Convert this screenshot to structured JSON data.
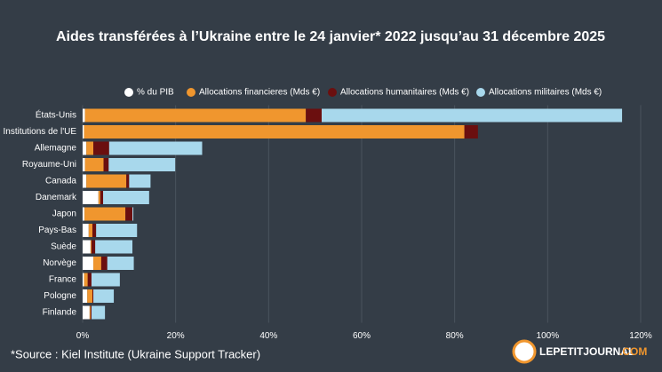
{
  "chart_data": {
    "type": "stacked-barh",
    "title": "Aides transférées à l’Ukraine entre le 24 janvier* 2022 jusqu’au 31 décembre 2025",
    "categories": [
      "États-Unis",
      "Institutions de l'UE",
      "Allemagne",
      "Royaume-Uni",
      "Canada",
      "Danemark",
      "Japon",
      "Pays-Bas",
      "Suède",
      "Norvège",
      "France",
      "Pologne",
      "Finlande"
    ],
    "series": [
      {
        "name": "% du PIB",
        "color": "#ffffff",
        "values": [
          0.5,
          0.3,
          0.8,
          0.5,
          0.8,
          3.4,
          0.4,
          1.3,
          1.7,
          2.3,
          0.3,
          1.0,
          1.5
        ]
      },
      {
        "name": "Allocations financieres (Mds €)",
        "color": "#f0962e",
        "values": [
          47.5,
          81.8,
          1.5,
          4.0,
          8.6,
          0.4,
          8.8,
          0.8,
          0.2,
          1.7,
          0.8,
          1.1,
          0.2
        ]
      },
      {
        "name": "Allocations humanitaires (Mds €)",
        "color": "#6b0f0f",
        "values": [
          3.4,
          2.9,
          3.4,
          1.1,
          0.6,
          0.6,
          1.5,
          0.8,
          0.8,
          1.3,
          0.8,
          0.2,
          0.2
        ]
      },
      {
        "name": "Allocations militaires (Mds €)",
        "color": "#a8d8ec",
        "values": [
          64.6,
          0,
          20.0,
          14.3,
          4.6,
          9.9,
          0.2,
          8.8,
          8.0,
          5.7,
          6.1,
          4.4,
          2.9
        ]
      }
    ],
    "xlim": [
      0,
      120
    ],
    "xticks": [
      {
        "value": 0,
        "label": "0%"
      },
      {
        "value": 20,
        "label": "20%"
      },
      {
        "value": 40,
        "label": "40%"
      },
      {
        "value": 60,
        "label": "60%"
      },
      {
        "value": 80,
        "label": "80%"
      },
      {
        "value": 100,
        "label": "100%"
      },
      {
        "value": 120,
        "label": "120%"
      }
    ],
    "grid": true,
    "legend": "top-right",
    "source": "*Source : Kiel Institute (Ukraine Support Tracker)"
  },
  "logo": {
    "name": "LEPETITJOURNAL",
    "suffix": ".COM"
  }
}
